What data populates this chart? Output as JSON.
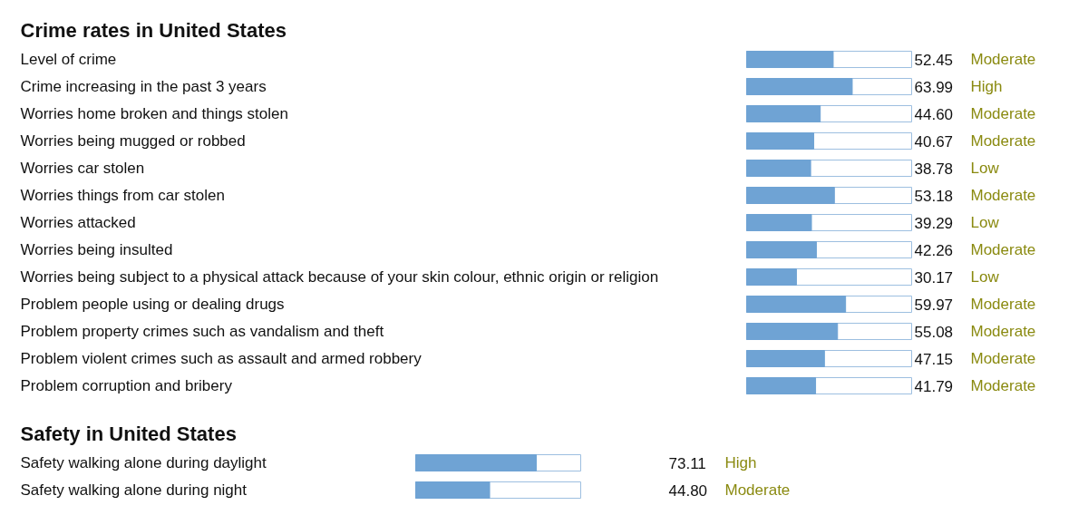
{
  "chart_data": [
    {
      "type": "bar",
      "orientation": "horizontal",
      "title": "Crime rates in United States",
      "categories": [
        "Level of crime",
        "Crime increasing in the past 3 years",
        "Worries home broken and things stolen",
        "Worries being mugged or robbed",
        "Worries car stolen",
        "Worries things from car stolen",
        "Worries attacked",
        "Worries being insulted",
        "Worries being subject to a physical attack because of your skin colour, ethnic origin or religion",
        "Problem people using or dealing drugs",
        "Problem property crimes such as vandalism and theft",
        "Problem violent crimes such as assault and armed robbery",
        "Problem corruption and bribery"
      ],
      "values": [
        52.45,
        63.99,
        44.6,
        40.67,
        38.78,
        53.18,
        39.29,
        42.26,
        30.17,
        59.97,
        55.08,
        47.15,
        41.79
      ],
      "value_labels": [
        "52.45",
        "63.99",
        "44.60",
        "40.67",
        "38.78",
        "53.18",
        "39.29",
        "42.26",
        "30.17",
        "59.97",
        "55.08",
        "47.15",
        "41.79"
      ],
      "annotations": [
        "Moderate",
        "High",
        "Moderate",
        "Moderate",
        "Low",
        "Moderate",
        "Low",
        "Moderate",
        "Low",
        "Moderate",
        "Moderate",
        "Moderate",
        "Moderate"
      ],
      "color": "#6fa3d4",
      "xlim": [
        0,
        100
      ]
    },
    {
      "type": "bar",
      "orientation": "horizontal",
      "title": "Safety in United States",
      "categories": [
        "Safety walking alone during daylight",
        "Safety walking alone during night"
      ],
      "values": [
        73.11,
        44.8
      ],
      "value_labels": [
        "73.11",
        "44.80"
      ],
      "annotations": [
        "High",
        "Moderate"
      ],
      "color": "#6fa3d4",
      "xlim": [
        0,
        100
      ]
    }
  ]
}
